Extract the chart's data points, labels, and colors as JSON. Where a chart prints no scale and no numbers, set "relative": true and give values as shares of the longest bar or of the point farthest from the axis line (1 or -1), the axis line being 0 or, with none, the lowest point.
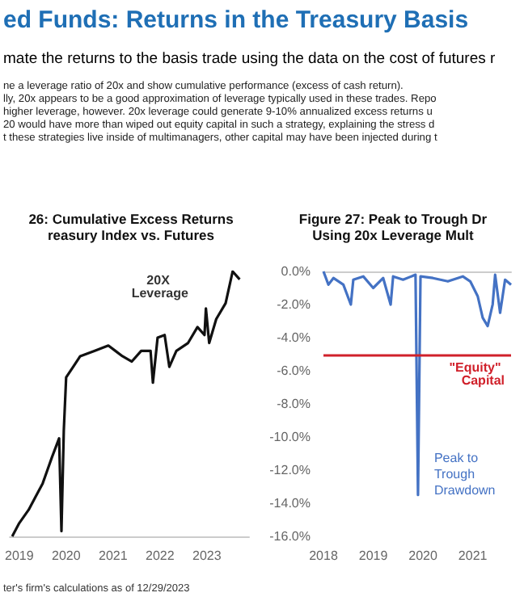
{
  "chart_data": [
    {
      "type": "other",
      "title": "ed Funds: Returns in the Treasury Basis",
      "subtitle": "mate the returns to the basis trade using the data on the cost of futures r",
      "annotations": [
        "ne a leverage ratio of 20x and show cumulative performance (excess of cash return).",
        "lly, 20x appears to be a good approximation of leverage typically used in these trades. Repo",
        "higher leverage, however. 20x leverage could generate 9-10% annualized excess returns u",
        "20 would have more than wiped out equity capital in such a strategy, explaining the stress d",
        "t these strategies live inside of multimanagers, other capital may have been injected during t"
      ]
    },
    {
      "type": "line",
      "title": "26: Cumulative Excess Returns",
      "subtitle": "reasury Index vs. Futures",
      "relative": true,
      "tick_labels": "x",
      "xlim": [
        2018.8,
        2023.9
      ],
      "xticks": [
        2019,
        2020,
        2021,
        2022,
        2023
      ],
      "marker": "none",
      "x": [
        2018.85,
        2019.0,
        2019.2,
        2019.35,
        2019.5,
        2019.6,
        2019.7,
        2019.85,
        2019.9,
        2019.95,
        2020.0,
        2020.15,
        2020.3,
        2020.6,
        2020.9,
        2021.05,
        2021.2,
        2021.4,
        2021.6,
        2021.8,
        2021.85,
        2021.95,
        2022.1,
        2022.2,
        2022.35,
        2022.6,
        2022.8,
        2022.95,
        2022.98,
        2023.05,
        2023.2,
        2023.4,
        2023.55,
        2023.7
      ],
      "series": [
        {
          "color": "#111111",
          "values": [
            0.0,
            0.05,
            0.1,
            0.15,
            0.2,
            0.25,
            0.3,
            0.37,
            0.02,
            0.4,
            0.6,
            0.64,
            0.68,
            0.7,
            0.72,
            0.7,
            0.68,
            0.66,
            0.7,
            0.7,
            0.58,
            0.75,
            0.76,
            0.64,
            0.7,
            0.73,
            0.79,
            0.76,
            0.86,
            0.73,
            0.82,
            0.88,
            1.0,
            0.97
          ]
        }
      ],
      "annotations": [
        {
          "text": "20X Leverage",
          "x": 2022,
          "y": 0.76
        },
        "ter's firm's calculations as of 12/29/2023"
      ]
    },
    {
      "type": "line",
      "title": "Figure 27: Peak to Trough Dr",
      "subtitle": "Using 20x Leverage Mult",
      "xlim": [
        2018,
        2021.77
      ],
      "xticks": [
        2018,
        2019,
        2020,
        2021
      ],
      "ylim": [
        -16,
        0
      ],
      "yticks": [
        {
          "value": -16,
          "label": "-16.0%"
        },
        {
          "value": -14,
          "label": "-14.0%"
        },
        {
          "value": -12,
          "label": "-12.0%"
        },
        {
          "value": -10,
          "label": "-10.0%"
        },
        {
          "value": -8,
          "label": "-8.0%"
        },
        {
          "value": -6,
          "label": "-6.0%"
        },
        {
          "value": -4,
          "label": "-4.0%"
        },
        {
          "value": -2,
          "label": "-2.0%"
        },
        {
          "value": 0,
          "label": "0.0%"
        }
      ],
      "marker": "none",
      "x": [
        2018.0,
        2018.1,
        2018.2,
        2018.4,
        2018.55,
        2018.6,
        2018.8,
        2019.0,
        2019.2,
        2019.35,
        2019.4,
        2019.6,
        2019.85,
        2019.9,
        2019.95,
        2020.2,
        2020.5,
        2020.8,
        2020.95,
        2021.1,
        2021.2,
        2021.3,
        2021.4,
        2021.45,
        2021.55,
        2021.65,
        2021.77
      ],
      "series": [
        {
          "name": "Peak to Trough Drawdown",
          "color": "#4472c4",
          "values": [
            0,
            -0.8,
            -0.4,
            -0.8,
            -2.0,
            -0.5,
            -0.3,
            -1.0,
            -0.4,
            -2.0,
            -0.3,
            -0.5,
            -0.2,
            -13.5,
            -0.3,
            -0.4,
            -0.6,
            -0.3,
            -0.6,
            -1.5,
            -2.8,
            -3.3,
            -2.0,
            -0.2,
            -2.5,
            -0.5,
            -0.8
          ]
        }
      ],
      "ref_lines": [
        {
          "axis": "y",
          "value": -5,
          "label": "\"Equity\" Capital",
          "color": "#d0202a"
        }
      ]
    }
  ]
}
